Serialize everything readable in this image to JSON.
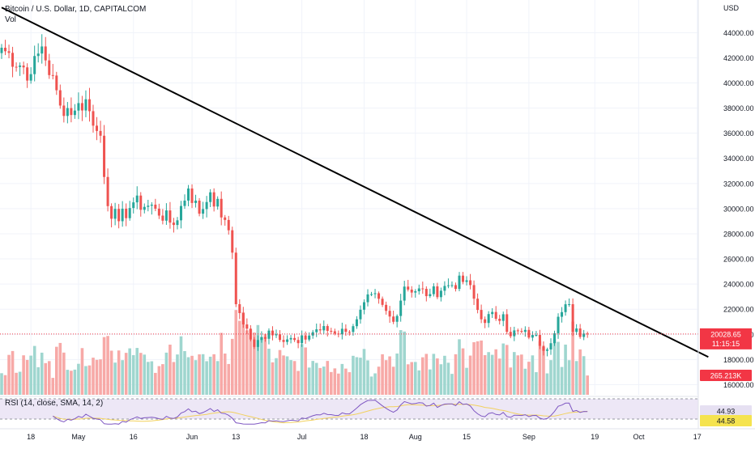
{
  "header": {
    "title": "Bitcoin / U.S. Dollar, 1D, CAPITALCOM",
    "volume_label": "Vol",
    "currency": "USD"
  },
  "rsi": {
    "label": "RSI (14, close, SMA, 14, 2)",
    "value_label": "44.93",
    "sma_label": "44.58"
  },
  "price_tags": {
    "price": "20028.65",
    "countdown": "11:15:15",
    "volume": "265.213K"
  },
  "colors": {
    "up": "#26a69a",
    "down": "#ef5350",
    "vol_up": "#9fd6cf",
    "vol_down": "#f7a9a7",
    "rsi_line": "#7e57c2",
    "rsi_sma": "#f2d15e",
    "rsi_band": "#ede7f6",
    "trendline": "#000000",
    "last_price_bg": "#f23645",
    "current_value_tag": "#f5e34f"
  },
  "chart_data": {
    "type": "candlestick",
    "title": "Bitcoin / U.S. Dollar, 1D, CAPITALCOM",
    "y_axis": {
      "unit": "USD",
      "range": [
        15000,
        46000
      ],
      "ticks": [
        "16000.00",
        "18000.00",
        "20000.00",
        "22000.00",
        "24000.00",
        "26000.00",
        "28000.00",
        "30000.00",
        "32000.00",
        "34000.00",
        "36000.00",
        "38000.00",
        "40000.00",
        "42000.00",
        "44000.00"
      ]
    },
    "x_axis": {
      "ticks": [
        "18",
        "May",
        "16",
        "Jun",
        "13",
        "Jul",
        "18",
        "Aug",
        "15",
        "Sep",
        "19",
        "Oct",
        "17"
      ]
    },
    "grid": true,
    "anchors": [
      [
        "2022-04-10",
        42800
      ],
      [
        "2022-04-18",
        40700
      ],
      [
        "2022-04-21",
        42900
      ],
      [
        "2022-04-26",
        38200
      ],
      [
        "2022-04-30",
        37800
      ],
      [
        "2022-05-03",
        38700
      ],
      [
        "2022-05-05",
        36600
      ],
      [
        "2022-05-07",
        35800
      ],
      [
        "2022-05-09",
        30200
      ],
      [
        "2022-05-12",
        29000
      ],
      [
        "2022-05-16",
        30500
      ],
      [
        "2022-05-22",
        30000
      ],
      [
        "2022-05-27",
        28700
      ],
      [
        "2022-05-31",
        31600
      ],
      [
        "2022-06-03",
        29600
      ],
      [
        "2022-06-06",
        31300
      ],
      [
        "2022-06-10",
        29100
      ],
      [
        "2022-06-12",
        26500
      ],
      [
        "2022-06-13",
        22400
      ],
      [
        "2022-06-18",
        19000
      ],
      [
        "2022-06-22",
        20300
      ],
      [
        "2022-06-30",
        19300
      ],
      [
        "2022-07-05",
        20400
      ],
      [
        "2022-07-13",
        20200
      ],
      [
        "2022-07-16",
        21200
      ],
      [
        "2022-07-20",
        23200
      ],
      [
        "2022-07-26",
        21000
      ],
      [
        "2022-07-29",
        23800
      ],
      [
        "2022-08-05",
        23200
      ],
      [
        "2022-08-10",
        23900
      ],
      [
        "2022-08-15",
        24300
      ],
      [
        "2022-08-19",
        21200
      ],
      [
        "2022-08-25",
        21600
      ],
      [
        "2022-08-26",
        20200
      ],
      [
        "2022-09-02",
        19950
      ],
      [
        "2022-09-06",
        18800
      ],
      [
        "2022-09-09",
        21400
      ],
      [
        "2022-09-12",
        22400
      ],
      [
        "2022-09-13",
        20200
      ],
      [
        "2022-09-17",
        20028.65
      ]
    ],
    "volume_label": "Vol",
    "last_volume": "265.213K",
    "last_price": 20028.65,
    "countdown": "11:15:15",
    "trendline": {
      "from": [
        "2022-04-10",
        46000
      ],
      "to": [
        "2022-10-20",
        18200
      ]
    },
    "rsi": {
      "period": 14,
      "source": "close",
      "smoothing": "SMA",
      "smoothing_length": 14,
      "value": 44.93,
      "sma": 44.58
    }
  }
}
